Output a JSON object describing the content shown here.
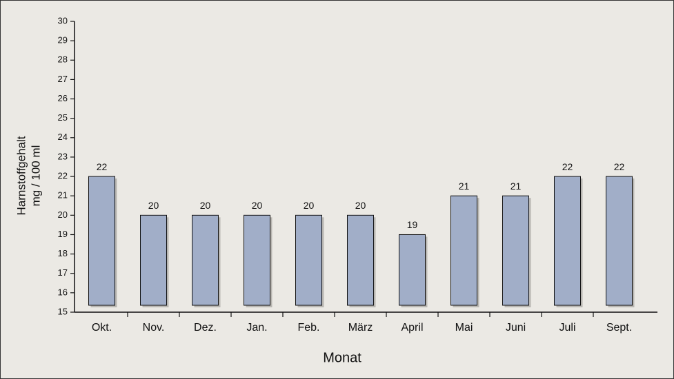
{
  "chart_data": {
    "type": "bar",
    "y_label": [
      "Harnstoffgehalt",
      "mg / 100 ml"
    ],
    "x_label": "Monat",
    "categories": [
      "Okt.",
      "Nov.",
      "Dez.",
      "Jan.",
      "Feb.",
      "März",
      "April",
      "Mai",
      "Juni",
      "Juli",
      "Sept."
    ],
    "values": [
      22,
      20,
      20,
      20,
      20,
      20,
      19,
      21,
      21,
      22,
      22
    ],
    "color": "#a1aec8",
    "ylim": [
      15,
      30
    ],
    "yticks": [
      15,
      16,
      17,
      18,
      19,
      20,
      21,
      22,
      23,
      24,
      25,
      26,
      27,
      28,
      29,
      30
    ]
  }
}
